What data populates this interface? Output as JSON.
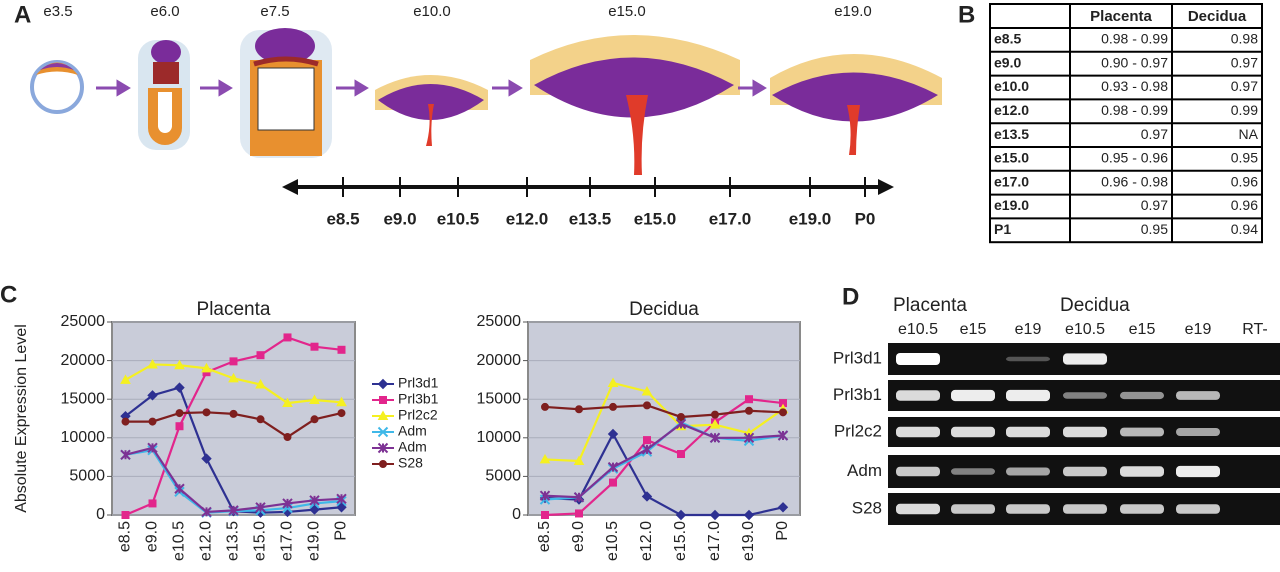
{
  "panel_labels": [
    "A",
    "B",
    "C",
    "D"
  ],
  "panel_a": {
    "stages": [
      "e3.5",
      "e6.0",
      "e7.5",
      "e10.0",
      "e15.0",
      "e19.0"
    ],
    "timeline": [
      "e8.5",
      "e9.0",
      "e10.5",
      "e12.0",
      "e13.5",
      "e15.0",
      "e17.0",
      "e19.0",
      "P0"
    ]
  },
  "table": {
    "headers": [
      "Placenta",
      "Decidua"
    ],
    "rows": [
      [
        "e8.5",
        "0.98 - 0.99",
        "0.98"
      ],
      [
        "e9.0",
        "0.90 - 0.97",
        "0.97"
      ],
      [
        "e10.0",
        "0.93 - 0.98",
        "0.97"
      ],
      [
        "e12.0",
        "0.98 - 0.99",
        "0.99"
      ],
      [
        "e13.5",
        "0.97",
        "NA"
      ],
      [
        "e15.0",
        "0.95 - 0.96",
        "0.95"
      ],
      [
        "e17.0",
        "0.96 - 0.98",
        "0.96"
      ],
      [
        "e19.0",
        "0.97",
        "0.96"
      ],
      [
        "P1",
        "0.95",
        "0.94"
      ]
    ]
  },
  "chart_data": [
    {
      "type": "line",
      "title": "Placenta",
      "ylabel": "Absolute Expression Level",
      "categories": [
        "e8.5",
        "e9.0",
        "e10.5",
        "e12.0",
        "e13.5",
        "e15.0",
        "e17.0",
        "e19.0",
        "P0"
      ],
      "ylim": [
        0,
        25000
      ],
      "yticks": [
        0,
        5000,
        10000,
        15000,
        20000,
        25000
      ],
      "grid": true,
      "legend": "right",
      "series": [
        {
          "name": "Prl3d1",
          "color": "#2e3192",
          "marker": "diamond",
          "values": [
            12800,
            15500,
            16500,
            7300,
            500,
            300,
            400,
            700,
            1000
          ]
        },
        {
          "name": "Prl3b1",
          "color": "#e2268c",
          "marker": "square",
          "values": [
            0,
            1500,
            11500,
            18500,
            19900,
            20700,
            23000,
            21800,
            21400
          ]
        },
        {
          "name": "Prl2c2",
          "color": "#f5f020",
          "marker": "triangle",
          "values": [
            17500,
            19500,
            19400,
            19000,
            17700,
            16900,
            14500,
            14900,
            14600
          ]
        },
        {
          "name": "Adm",
          "color": "#3fb8e8",
          "marker": "cross",
          "values": [
            7800,
            8400,
            3000,
            300,
            500,
            600,
            900,
            1500,
            1800
          ]
        },
        {
          "name": "Adm",
          "color": "#7d3294",
          "marker": "star",
          "values": [
            7800,
            8700,
            3400,
            400,
            600,
            1000,
            1500,
            1900,
            2100
          ]
        },
        {
          "name": "S28",
          "color": "#7f1f1f",
          "marker": "circle",
          "values": [
            12100,
            12100,
            13200,
            13300,
            13100,
            12400,
            10100,
            12400,
            13200
          ]
        }
      ]
    },
    {
      "type": "line",
      "title": "Decidua",
      "categories": [
        "e8.5",
        "e9.0",
        "e10.5",
        "e12.0",
        "e15.0",
        "e17.0",
        "e19.0",
        "P0"
      ],
      "ylim": [
        0,
        25000
      ],
      "yticks": [
        0,
        5000,
        10000,
        15000,
        20000,
        25000
      ],
      "grid": true,
      "series": [
        {
          "name": "Prl3d1",
          "color": "#2e3192",
          "marker": "diamond",
          "values": [
            2200,
            2000,
            10500,
            2400,
            0,
            0,
            0,
            1000
          ]
        },
        {
          "name": "Prl3b1",
          "color": "#e2268c",
          "marker": "square",
          "values": [
            0,
            200,
            4200,
            9700,
            7900,
            12000,
            15000,
            14500
          ]
        },
        {
          "name": "Prl2c2",
          "color": "#f5f020",
          "marker": "triangle",
          "values": [
            7200,
            7000,
            17100,
            16000,
            11500,
            11700,
            10600,
            13700
          ]
        },
        {
          "name": "Adm",
          "color": "#3fb8e8",
          "marker": "cross",
          "values": [
            2000,
            2300,
            6000,
            8200,
            12000,
            10000,
            9600,
            10300
          ]
        },
        {
          "name": "Adm",
          "color": "#7d3294",
          "marker": "star",
          "values": [
            2500,
            2300,
            6200,
            8500,
            11800,
            10000,
            10000,
            10300
          ]
        },
        {
          "name": "S28",
          "color": "#7f1f1f",
          "marker": "circle",
          "values": [
            14000,
            13700,
            14000,
            14200,
            12700,
            13000,
            13500,
            13300
          ]
        }
      ]
    }
  ],
  "gel": {
    "groups": [
      "Placenta",
      "Decidua"
    ],
    "lanes": [
      "e10.5",
      "e15",
      "e19",
      "e10.5",
      "e15",
      "e19",
      "RT-"
    ],
    "genes": [
      "Prl3d1",
      "Prl3b1",
      "Prl2c2",
      "Adm",
      "S28"
    ]
  }
}
